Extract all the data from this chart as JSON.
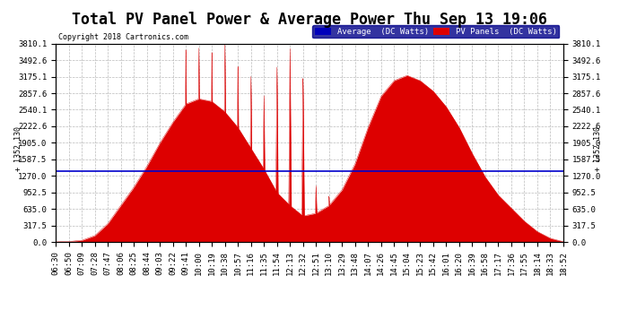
{
  "title": "Total PV Panel Power & Average Power Thu Sep 13 19:06",
  "copyright": "Copyright 2018 Cartronics.com",
  "avg_value": 1352.13,
  "avg_label": "1352.130",
  "ymax": 3810.1,
  "yticks": [
    0.0,
    317.5,
    635.0,
    952.5,
    1270.0,
    1587.5,
    1905.0,
    2222.6,
    2540.1,
    2857.6,
    3175.1,
    3492.6,
    3810.1
  ],
  "legend_avg_color": "#0000bb",
  "legend_pv_color": "#dd0000",
  "fill_color": "#dd0000",
  "avg_line_color": "#0000cc",
  "background_color": "#ffffff",
  "grid_color": "#aaaaaa",
  "title_fontsize": 12,
  "tick_fontsize": 6.5,
  "xtick_labels": [
    "06:30",
    "06:50",
    "07:09",
    "07:28",
    "07:47",
    "08:06",
    "08:25",
    "08:44",
    "09:03",
    "09:22",
    "09:41",
    "10:00",
    "10:19",
    "10:38",
    "10:57",
    "11:16",
    "11:35",
    "11:54",
    "12:13",
    "12:32",
    "12:51",
    "13:10",
    "13:29",
    "13:48",
    "14:07",
    "14:26",
    "14:45",
    "15:04",
    "15:23",
    "15:42",
    "16:01",
    "16:20",
    "16:39",
    "16:58",
    "17:17",
    "17:36",
    "17:55",
    "18:14",
    "18:33",
    "18:52"
  ],
  "base_pv": [
    0,
    8,
    30,
    120,
    350,
    700,
    1050,
    1450,
    1900,
    2300,
    2650,
    2750,
    2700,
    2500,
    2200,
    1800,
    1400,
    950,
    700,
    500,
    550,
    700,
    1000,
    1500,
    2200,
    2800,
    3100,
    3200,
    3100,
    2900,
    2600,
    2200,
    1700,
    1250,
    900,
    650,
    400,
    200,
    70,
    5
  ],
  "spike_indices": [
    10,
    11,
    12,
    13,
    14,
    15,
    16,
    17,
    18,
    19,
    20,
    21,
    22
  ],
  "spike_values": [
    3810,
    3750,
    3780,
    3810,
    3500,
    3200,
    2900,
    3400,
    3810,
    3200,
    1100,
    900,
    700
  ]
}
